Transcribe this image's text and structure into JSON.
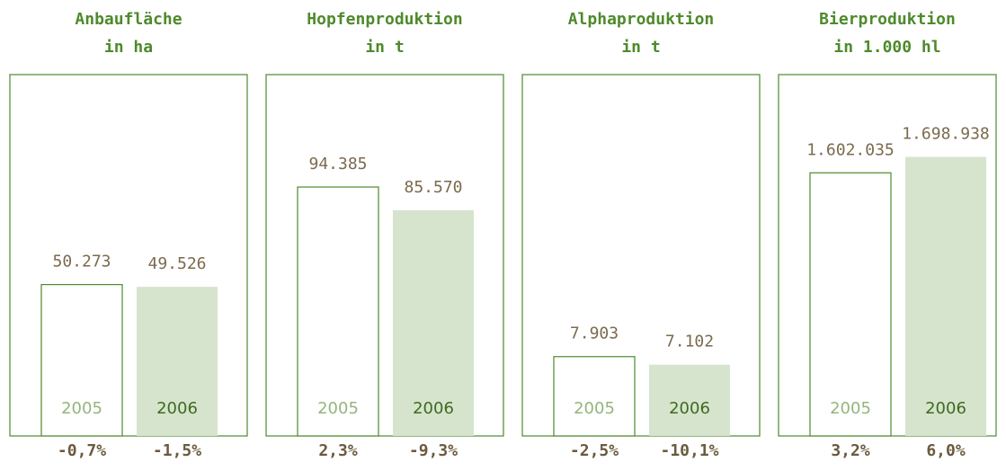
{
  "chart_data": [
    {
      "type": "bar",
      "title": "Anbaufläche",
      "subtitle": "in ha",
      "categories": [
        "2005",
        "2006"
      ],
      "values": [
        50273,
        49526
      ],
      "value_labels": [
        "50.273",
        "49.526"
      ],
      "annotations": [
        "-0,7%",
        "-1,5%"
      ],
      "ylim": [
        0,
        120000
      ],
      "colors": [
        "#ffffff",
        "#d6e4cd"
      ],
      "edgecolor": "#4e8a2c"
    },
    {
      "type": "bar",
      "title": "Hopfenproduktion",
      "subtitle": "in t",
      "categories": [
        "2005",
        "2006"
      ],
      "values": [
        94385,
        85570
      ],
      "value_labels": [
        "94.385",
        "85.570"
      ],
      "annotations": [
        "2,3%",
        "-9,3%"
      ],
      "ylim": [
        0,
        137000
      ],
      "colors": [
        "#ffffff",
        "#d6e4cd"
      ],
      "edgecolor": "#4e8a2c"
    },
    {
      "type": "bar",
      "title": "Alphaproduktion",
      "subtitle": "in t",
      "categories": [
        "2005",
        "2006"
      ],
      "values": [
        7903,
        7102
      ],
      "value_labels": [
        "7.903",
        "7.102"
      ],
      "annotations": [
        "-2,5%",
        "-10,1%"
      ],
      "ylim": [
        0,
        36000
      ],
      "colors": [
        "#ffffff",
        "#d6e4cd"
      ],
      "edgecolor": "#4e8a2c"
    },
    {
      "type": "bar",
      "title": "Bierproduktion",
      "subtitle": "in 1.000 hl",
      "categories": [
        "2005",
        "2006"
      ],
      "values": [
        1602035,
        1698938
      ],
      "value_labels": [
        "1.602.035",
        "1.698.938"
      ],
      "annotations": [
        "3,2%",
        "6,0%"
      ],
      "ylim": [
        0,
        2200000
      ],
      "colors": [
        "#ffffff",
        "#d6e4cd"
      ],
      "edgecolor": "#4e8a2c"
    }
  ]
}
